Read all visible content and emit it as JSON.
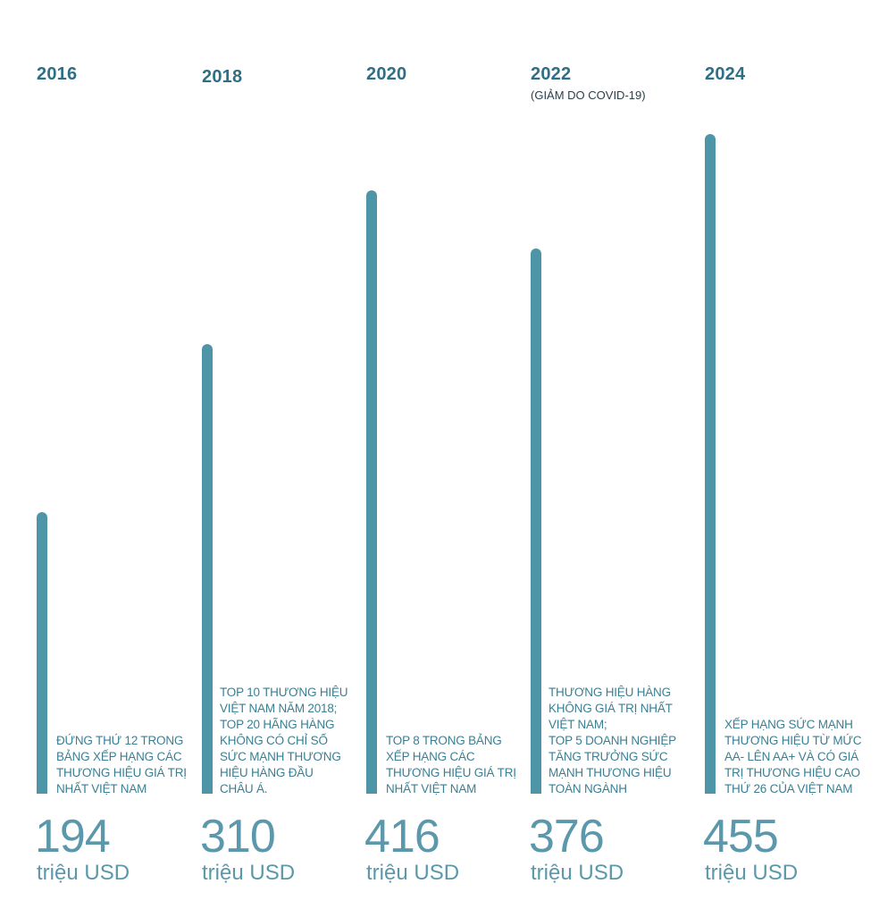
{
  "chart_data": {
    "type": "bar",
    "categories": [
      "2016",
      "2018",
      "2020",
      "2022",
      "2024"
    ],
    "values": [
      194,
      310,
      416,
      376,
      455
    ],
    "unit": "triệu USD",
    "category_notes": [
      "",
      "",
      "",
      "(GIẢM DO COVID-19)",
      ""
    ],
    "annotations": [
      [
        "ĐỨNG THỨ 12 TRONG",
        "BẢNG XẾP HẠNG CÁC",
        "THƯƠNG HIỆU GIÁ TRỊ",
        "NHẤT VIỆT NAM"
      ],
      [
        "TOP 10 THƯƠNG HIỆU",
        "VIỆT NAM NĂM 2018;",
        "TOP 20 HÃNG HÀNG",
        "KHÔNG CÓ CHỈ SỐ",
        "SỨC MẠNH THƯƠNG",
        "HIỆU HÀNG ĐẦU",
        "CHÂU Á."
      ],
      [
        "TOP 8 TRONG BẢNG",
        "XẾP HẠNG CÁC",
        "THƯƠNG HIỆU GIÁ TRỊ",
        "NHẤT VIỆT NAM"
      ],
      [
        "THƯƠNG HIỆU HÀNG",
        "KHÔNG GIÁ TRỊ NHẤT",
        "VIỆT NAM;",
        "TOP 5 DOANH NGHIỆP",
        "TĂNG TRƯỞNG SỨC",
        "MẠNH THƯƠNG HIỆU",
        "TOÀN NGÀNH"
      ],
      [
        "XẾP HẠNG SỨC MẠNH",
        "THƯƠNG HIỆU TỪ MỨC",
        "AA- LÊN AA+ VÀ CÓ GIÁ",
        "TRỊ THƯƠNG HIỆU CAO",
        "THỨ 26 CỦA VIỆT NAM"
      ]
    ],
    "colors": {
      "bar": "#4f95a8",
      "year": "#2f6f86",
      "value": "#5b98ab",
      "annotation": "#3a7f93"
    }
  }
}
